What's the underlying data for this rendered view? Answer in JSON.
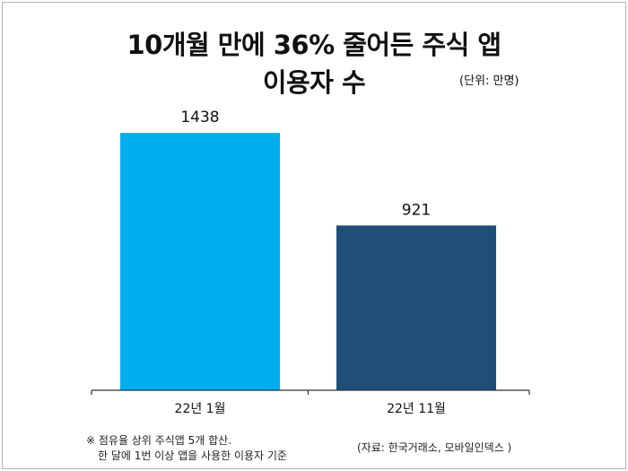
{
  "chart_data": {
    "type": "bar",
    "title_line1": "10개월 만에 36% 줄어든 주식 앱",
    "title_line2": "이용자 수",
    "unit_note": "(단위: 만명)",
    "categories": [
      "22년 1월",
      "22년 11월"
    ],
    "values": [
      1438,
      921
    ],
    "value_labels": [
      "1438",
      "921"
    ],
    "colors": [
      "#00AEEF",
      "#1F4E79"
    ],
    "ylim": [
      0,
      1800
    ],
    "grid": false,
    "legend": "none",
    "footnote_line1": "※ 점유율 상위 주식앱 5개 합산.",
    "footnote_line2": "한 달에 1번 이상 앱을 사용한 이용자 기준",
    "source": "(자료: 한국거래소, 모바일인덱스 )"
  }
}
